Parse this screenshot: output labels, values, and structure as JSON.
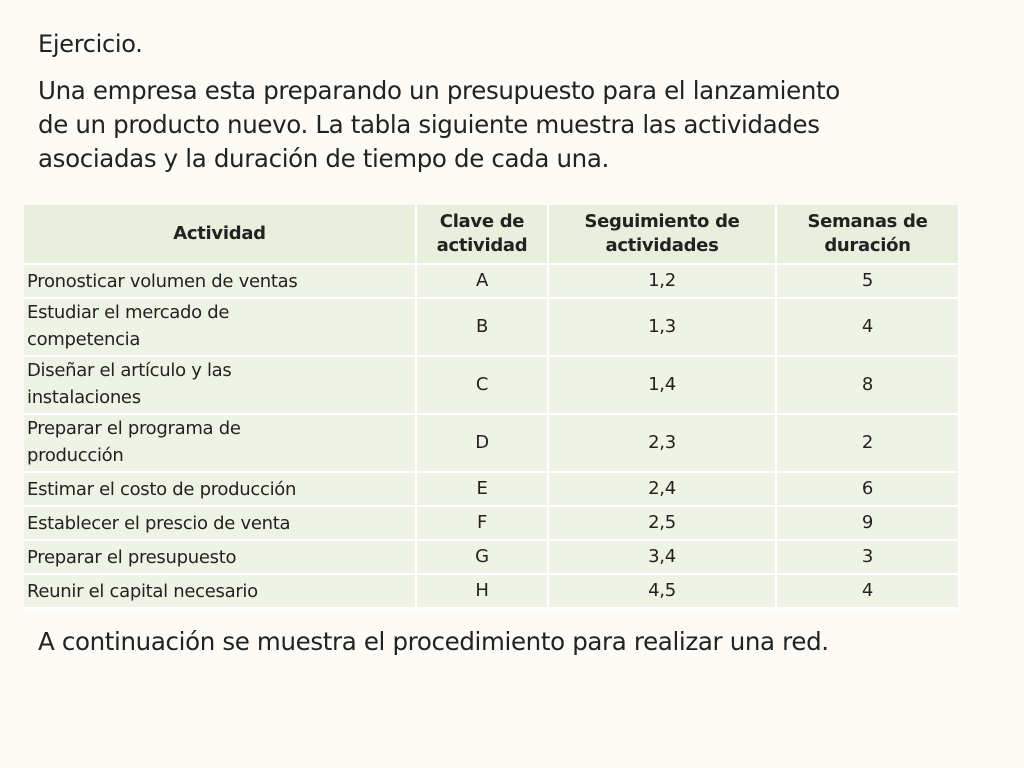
{
  "heading": "Ejercicio.",
  "intro_lines": [
    "Una empresa esta preparando un presupuesto para el lanzamiento",
    "de un producto nuevo. La tabla siguiente muestra las actividades",
    "asociadas y la duración de tiempo de cada una."
  ],
  "table": {
    "headers": {
      "actividad": "Actividad",
      "clave_line1": "Clave de",
      "clave_line2": "actividad",
      "seguimiento_line1": "Seguimiento de",
      "seguimiento_line2": "actividades",
      "semanas_line1": "Semanas de",
      "semanas_line2": "duración"
    },
    "rows": [
      {
        "actividad": "Pronosticar volumen de ventas",
        "clave": "A",
        "seguimiento": "1,2",
        "semanas": "5"
      },
      {
        "actividad_line1": "Estudiar el mercado de",
        "actividad_line2": "competencia",
        "clave": "B",
        "seguimiento": "1,3",
        "semanas": "4"
      },
      {
        "actividad_line1": "Diseñar el artículo y las",
        "actividad_line2": "instalaciones",
        "clave": "C",
        "seguimiento": "1,4",
        "semanas": "8"
      },
      {
        "actividad_line1": "Preparar el programa de",
        "actividad_line2": "producción",
        "clave": "D",
        "seguimiento": "2,3",
        "semanas": "2"
      },
      {
        "actividad": "Estimar el costo de producción",
        "clave": "E",
        "seguimiento": "2,4",
        "semanas": "6"
      },
      {
        "actividad": "Establecer el prescio de venta",
        "clave": "F",
        "seguimiento": "2,5",
        "semanas": "9"
      },
      {
        "actividad": "Preparar el presupuesto",
        "clave": "G",
        "seguimiento": "3,4",
        "semanas": "3"
      },
      {
        "actividad": "Reunir el capital necesario",
        "clave": "H",
        "seguimiento": "4,5",
        "semanas": "4"
      }
    ]
  },
  "outro": "A continuación se muestra el procedimiento para realizar una red."
}
